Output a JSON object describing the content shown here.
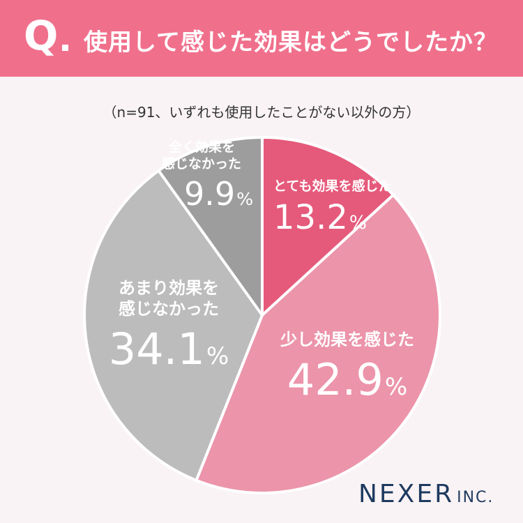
{
  "header": {
    "q_label": "Q",
    "question": "使用して感じた効果はどうでしたか？"
  },
  "subtitle": "（n=91、いずれも使用したことがない以外の方）",
  "chart_data": {
    "type": "pie",
    "title": "使用して感じた効果はどうでしたか？",
    "slices": [
      {
        "label": "とても効果を感じた",
        "value": 13.2,
        "display": "13.2",
        "unit": "%",
        "color": "#e55a7b"
      },
      {
        "label": "少し効果を感じた",
        "value": 42.9,
        "display": "42.9",
        "unit": "%",
        "color": "#ec94aa"
      },
      {
        "label": "あまり効果を感じなかった",
        "value": 34.1,
        "display": "34.1",
        "unit": "%",
        "color": "#bcbcbc"
      },
      {
        "label": "全く効果を感じなかった",
        "value": 9.9,
        "display": "9.9",
        "unit": "%",
        "color": "#9d9d9d"
      }
    ]
  },
  "labels": {
    "s0": {
      "text": "とても効果を感じた"
    },
    "s1": {
      "text": "少し効果を感じた"
    },
    "s2": {
      "line1": "あまり効果を",
      "line2": "感じなかった"
    },
    "s3": {
      "line1": "全く効果を",
      "line2": "感じなかった"
    }
  },
  "logo": {
    "name": "NEXER",
    "suffix": "INC."
  }
}
